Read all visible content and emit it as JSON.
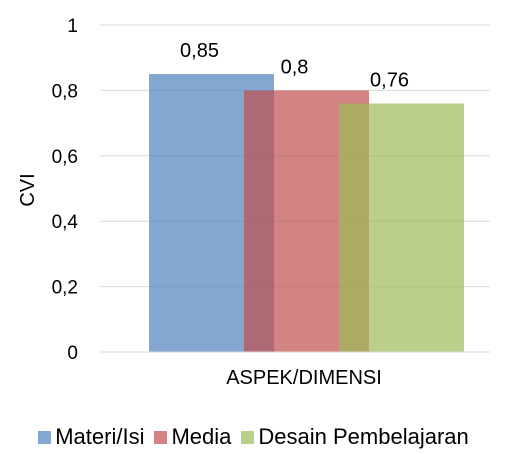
{
  "chart_data": {
    "type": "bar",
    "categories": [
      "ASPEK/DIMENSI"
    ],
    "series": [
      {
        "name": "Materi/Isi",
        "values": [
          0.85
        ],
        "label": "0,85",
        "color": "#4f81bd",
        "opacity": 0.7
      },
      {
        "name": "Media",
        "values": [
          0.8
        ],
        "label": "0,8",
        "color": "#c0504d",
        "opacity": 0.7
      },
      {
        "name": "Desain Pembelajaran",
        "values": [
          0.76
        ],
        "label": "0,76",
        "color": "#9bbb59",
        "opacity": 0.7
      }
    ],
    "ylabel": "CVI",
    "xlabel": "",
    "ylim": [
      0,
      1
    ],
    "yticks": [
      {
        "value": 0,
        "label": "0"
      },
      {
        "value": 0.2,
        "label": "0,2"
      },
      {
        "value": 0.4,
        "label": "0,4"
      },
      {
        "value": 0.6,
        "label": "0,6"
      },
      {
        "value": 0.8,
        "label": "0,8"
      },
      {
        "value": 1,
        "label": "1"
      }
    ],
    "grid": true,
    "legend": "bottom"
  }
}
